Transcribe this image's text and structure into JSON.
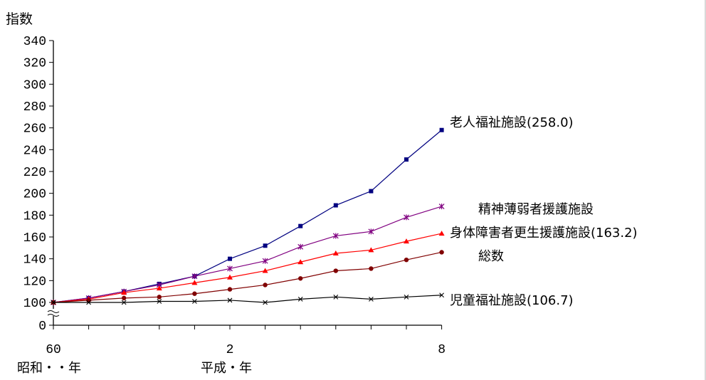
{
  "chart_data": {
    "type": "line",
    "ylabel": "指数",
    "ylim": [
      0,
      340
    ],
    "yticks": [
      0,
      100,
      120,
      140,
      160,
      180,
      200,
      220,
      240,
      260,
      280,
      300,
      320,
      340
    ],
    "axis_break": true,
    "x": [
      60,
      61,
      62,
      63,
      64,
      2,
      3,
      4,
      5,
      6,
      7,
      8
    ],
    "xtick_labels": [
      "60",
      "2",
      "8"
    ],
    "xtick_index": [
      0,
      5,
      11
    ],
    "xera_labels": [
      "昭和・・年",
      "平成・年"
    ],
    "series": [
      {
        "name": "老人福祉施設(258.0)",
        "color": "#000080",
        "marker": "square",
        "values": [
          100,
          104,
          110,
          117,
          124,
          140,
          152,
          170,
          189,
          202,
          231,
          258.0
        ]
      },
      {
        "name": "精神薄弱者援護施設",
        "color": "#800080",
        "marker": "star",
        "values": [
          100,
          104,
          110,
          116,
          124,
          131,
          138,
          151,
          161,
          165,
          178,
          188
        ]
      },
      {
        "name": "身体障害者更生援護施設(163.2)",
        "color": "#ff0000",
        "marker": "triangle",
        "values": [
          100,
          103,
          109,
          113,
          118,
          123,
          129,
          137,
          145,
          148,
          156,
          163.2
        ]
      },
      {
        "name": "総数",
        "color": "#800000",
        "marker": "circle",
        "values": [
          100,
          102,
          104,
          105,
          108,
          112,
          116,
          122,
          129,
          131,
          139,
          146
        ]
      },
      {
        "name": "児童福祉施設(106.7)",
        "color": "#000000",
        "marker": "x",
        "values": [
          100,
          100,
          100,
          101,
          101,
          102,
          100,
          103,
          105,
          103,
          105,
          106.7
        ]
      }
    ],
    "legend_placement": "right, at line ends"
  }
}
